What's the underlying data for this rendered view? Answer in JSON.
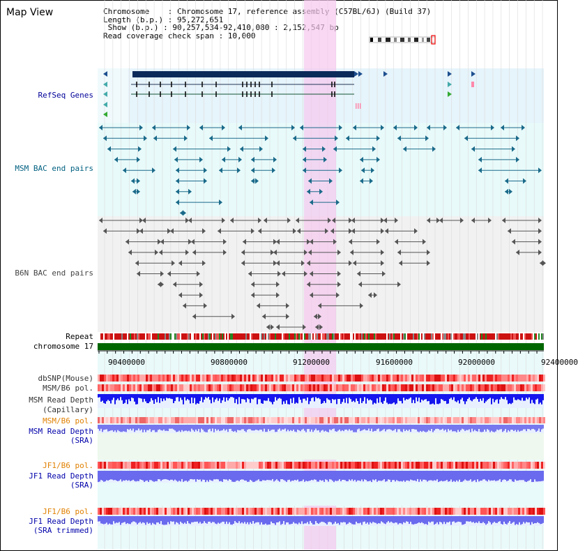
{
  "title": "Map View",
  "info": {
    "chromosome": "Chromosome    : Chromosome 17, reference assembly (C57BL/6J) (Build 37)",
    "length": "Length (b.p.) : 95,272,651",
    "show": " Show (b.p.) : 90,257,534-92,410,080 : 2,152,547 bp",
    "coverage": "Read coverage check span : 10,000"
  },
  "labels": {
    "refseq": "RefSeq Genes",
    "msm_bac": "MSM BAC end pairs",
    "b6n_bac": "B6N BAC end pairs",
    "repeat": "Repeat",
    "chromosome": "chromosome 17",
    "dbsnp": "dbSNP(Mouse)",
    "msm_b6_pol_1": "MSM/B6 pol.",
    "msm_depth_cap": "MSM Read Depth",
    "msm_depth_cap_2": "(Capillary)",
    "msm_b6_pol_2": "MSM/B6 pol.",
    "msm_depth_sra": "MSM Read Depth",
    "msm_depth_sra_2": "(SRA)",
    "jf1_b6_pol_1": "JF1/B6 pol.",
    "jf1_depth_sra": "JF1 Read Depth",
    "jf1_depth_sra_2": "(SRA)",
    "jf1_b6_pol_2": "JF1/B6 pol.",
    "jf1_depth_trim": "JF1 Read Depth",
    "jf1_depth_trim_2": "(SRA trimmed)"
  },
  "ruler": [
    "90400000",
    "90800000",
    "91200000",
    "91600000",
    "92000000",
    "92400000"
  ],
  "colors": {
    "refseq_gene": "#0a2a5a",
    "msm_bac": "#1a6a8a",
    "b6n_bac": "#555555",
    "chromosome_bar": "#006600",
    "highlight": "#f5c8ee",
    "depth_blue": "#2a2aee",
    "pol_red": "#ee3333"
  }
}
